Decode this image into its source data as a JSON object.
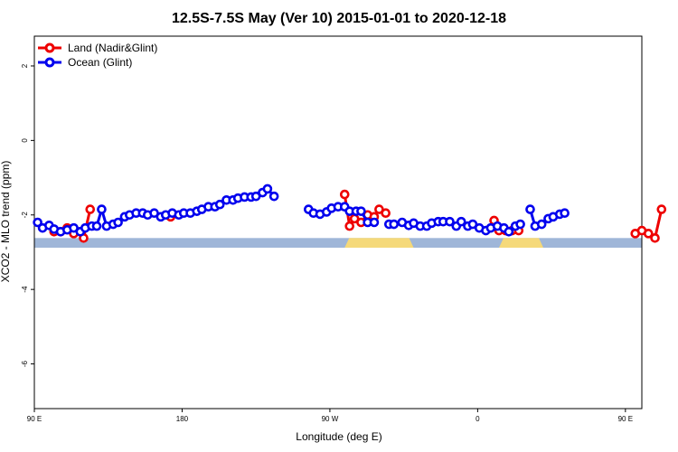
{
  "chart_data": {
    "type": "line",
    "title": "12.5S-7.5S May (Ver 10)   2015-01-01 to 2020-12-18",
    "xlabel": "Longitude (deg E)",
    "ylabel": "XCO2 - MLO trend (ppm)",
    "xlim": [
      90,
      460
    ],
    "ylim": [
      -7.2,
      2.8
    ],
    "x_ticks": [
      {
        "value": 90,
        "label": "90 E"
      },
      {
        "value": 180,
        "label": "180"
      },
      {
        "value": 270,
        "label": "90 W"
      },
      {
        "value": 360,
        "label": "0"
      },
      {
        "value": 450,
        "label": "90 E"
      },
      {
        "value": 540,
        "label": "180"
      }
    ],
    "y_ticks": [
      {
        "value": 2,
        "label": "2"
      },
      {
        "value": 0,
        "label": "0"
      },
      {
        "value": -2,
        "label": "-2"
      },
      {
        "value": -4,
        "label": "-4"
      },
      {
        "value": -6,
        "label": "-6"
      }
    ],
    "legend_position": "top-left",
    "grid": false,
    "land_band_y": [
      -2.62,
      -2.88
    ],
    "land_segments": [
      [
        279,
        321
      ],
      [
        373,
        400
      ]
    ],
    "colors": {
      "land": "#ee0000",
      "ocean": "#0000ee",
      "band": "#9fb6d8",
      "land_fill": "#f5d97a"
    },
    "series": [
      {
        "name": "Land (Nadir&Glint)",
        "segments": [
          [
            [
              102,
              -2.45
            ],
            [
              106,
              -2.45
            ],
            [
              110,
              -2.35
            ],
            [
              114,
              -2.5
            ],
            [
              118,
              -2.45
            ],
            [
              120,
              -2.62
            ],
            [
              124,
              -1.85
            ]
          ],
          [
            [
              173,
              -2.05
            ]
          ],
          [
            [
              279,
              -1.45
            ],
            [
              282,
              -2.3
            ],
            [
              285,
              -2.1
            ],
            [
              289,
              -2.2
            ],
            [
              293,
              -2.0
            ],
            [
              297,
              -2.05
            ],
            [
              300,
              -1.85
            ],
            [
              304,
              -1.95
            ]
          ],
          [
            [
              370,
              -2.15
            ],
            [
              373,
              -2.42
            ],
            [
              377,
              -2.42
            ],
            [
              381,
              -2.42
            ],
            [
              385,
              -2.42
            ]
          ],
          [
            [
              456,
              -2.5
            ],
            [
              460,
              -2.42
            ],
            [
              464,
              -2.5
            ],
            [
              468,
              -2.62
            ],
            [
              472,
              -1.85
            ]
          ]
        ]
      },
      {
        "name": "Ocean (Glint)",
        "segments": [
          [
            [
              92,
              -2.2
            ],
            [
              95,
              -2.35
            ],
            [
              99,
              -2.28
            ],
            [
              102,
              -2.38
            ],
            [
              106,
              -2.45
            ],
            [
              110,
              -2.4
            ],
            [
              114,
              -2.35
            ],
            [
              118,
              -2.45
            ],
            [
              121,
              -2.35
            ],
            [
              125,
              -2.3
            ],
            [
              128,
              -2.3
            ],
            [
              131,
              -1.85
            ],
            [
              134,
              -2.3
            ],
            [
              138,
              -2.25
            ],
            [
              141,
              -2.2
            ],
            [
              145,
              -2.05
            ],
            [
              148,
              -2.0
            ],
            [
              152,
              -1.95
            ],
            [
              156,
              -1.95
            ],
            [
              159,
              -2.0
            ],
            [
              163,
              -1.95
            ],
            [
              167,
              -2.05
            ],
            [
              170,
              -2.0
            ],
            [
              174,
              -1.95
            ],
            [
              178,
              -2.0
            ],
            [
              181,
              -1.95
            ],
            [
              185,
              -1.95
            ],
            [
              189,
              -1.9
            ],
            [
              192,
              -1.85
            ],
            [
              196,
              -1.78
            ],
            [
              200,
              -1.78
            ],
            [
              203,
              -1.72
            ],
            [
              207,
              -1.6
            ],
            [
              211,
              -1.6
            ],
            [
              214,
              -1.55
            ],
            [
              218,
              -1.52
            ],
            [
              222,
              -1.52
            ],
            [
              225,
              -1.5
            ],
            [
              229,
              -1.4
            ],
            [
              232,
              -1.3
            ],
            [
              236,
              -1.5
            ]
          ],
          [
            [
              257,
              -1.85
            ],
            [
              260,
              -1.95
            ],
            [
              264,
              -1.98
            ],
            [
              268,
              -1.92
            ],
            [
              271,
              -1.82
            ],
            [
              275,
              -1.78
            ],
            [
              279,
              -1.78
            ],
            [
              282,
              -1.9
            ],
            [
              286,
              -1.9
            ],
            [
              289,
              -1.9
            ],
            [
              293,
              -2.2
            ],
            [
              297,
              -2.2
            ]
          ],
          [
            [
              306,
              -2.25
            ],
            [
              309,
              -2.25
            ]
          ],
          [
            [
              314,
              -2.2
            ],
            [
              318,
              -2.28
            ],
            [
              321,
              -2.22
            ],
            [
              325,
              -2.3
            ],
            [
              329,
              -2.3
            ],
            [
              332,
              -2.22
            ],
            [
              336,
              -2.18
            ],
            [
              339,
              -2.18
            ],
            [
              343,
              -2.18
            ],
            [
              347,
              -2.3
            ],
            [
              350,
              -2.18
            ],
            [
              354,
              -2.3
            ],
            [
              357,
              -2.25
            ],
            [
              361,
              -2.35
            ],
            [
              365,
              -2.42
            ],
            [
              368,
              -2.35
            ],
            [
              372,
              -2.3
            ],
            [
              376,
              -2.35
            ],
            [
              379,
              -2.45
            ],
            [
              383,
              -2.3
            ],
            [
              386,
              -2.25
            ]
          ],
          [
            [
              392,
              -1.85
            ],
            [
              395,
              -2.3
            ],
            [
              399,
              -2.25
            ],
            [
              403,
              -2.1
            ],
            [
              406,
              -2.05
            ],
            [
              410,
              -1.98
            ],
            [
              413,
              -1.95
            ]
          ]
        ]
      }
    ]
  }
}
